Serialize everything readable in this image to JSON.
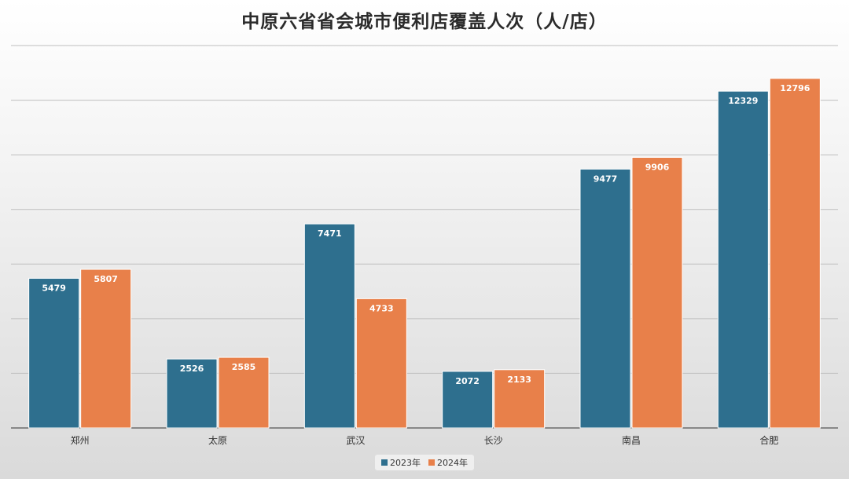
{
  "chart_data": {
    "type": "bar",
    "title": "中原六省省会城市便利店覆盖人次（人/店）",
    "categories": [
      "郑州",
      "太原",
      "武汉",
      "长沙",
      "南昌",
      "合肥"
    ],
    "series": [
      {
        "name": "2023年",
        "color": "#2e6f8e",
        "values": [
          5479,
          2526,
          7471,
          2072,
          9477,
          12329
        ]
      },
      {
        "name": "2024年",
        "color": "#e8804a",
        "values": [
          5807,
          2585,
          4733,
          2133,
          9906,
          12796
        ]
      }
    ],
    "ylim": [
      0,
      14000
    ],
    "grid": true,
    "legend": "bottom"
  }
}
